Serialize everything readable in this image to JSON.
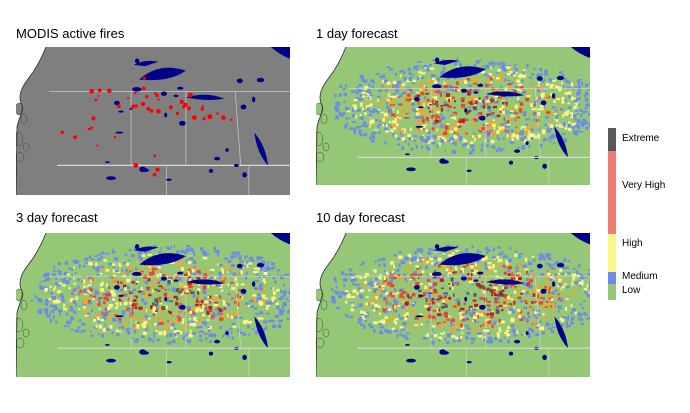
{
  "panels": [
    {
      "title": "MODIS active fires"
    },
    {
      "title": "1 day forecast"
    },
    {
      "title": "3 day forecast"
    },
    {
      "title": "10 day forecast"
    }
  ],
  "legend": {
    "classes": [
      {
        "label": "Extreme",
        "color": "#595959"
      },
      {
        "label": "Very High",
        "color": "#ef7d75"
      },
      {
        "label": "High",
        "color": "#fbf686"
      },
      {
        "label": "Medium",
        "color": "#6c8de6"
      },
      {
        "label": "Low",
        "color": "#96c776"
      }
    ]
  },
  "colors": {
    "ocean": "#ffffff",
    "background_land": "#7f7f7f",
    "forecast_land": "#96c776",
    "water": "#00008b",
    "fire_points": "#ff0000",
    "boundaries": "#d8d8d8"
  }
}
